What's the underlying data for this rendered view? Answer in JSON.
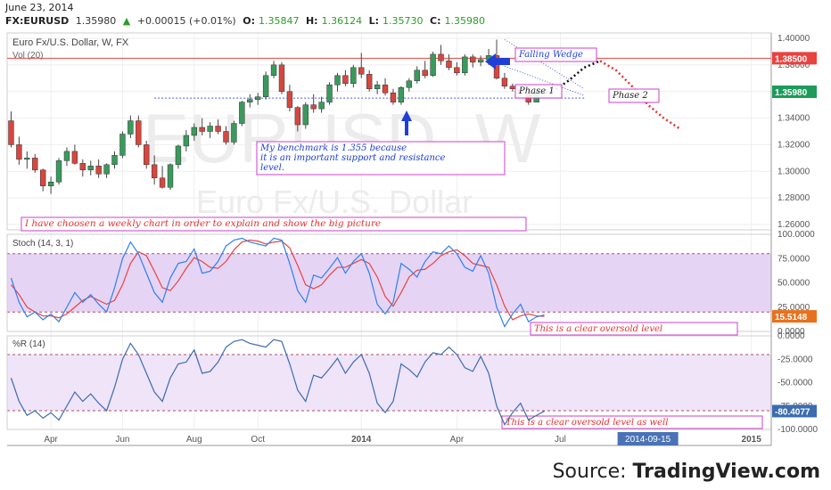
{
  "header": {
    "date": "June 23, 2014",
    "symbol": "FX:EURUSD",
    "last": "1.35980",
    "change": "+0.00015 (+0.01%)",
    "o_label": "O:",
    "o": "1.35847",
    "h_label": "H:",
    "h": "1.36124",
    "l_label": "L:",
    "l": "1.35730",
    "c_label": "C:",
    "c": "1.35980"
  },
  "chart_data": [
    {
      "panel": "price",
      "type": "candlestick",
      "title": "Euro Fx/U.S. Dollar, W, FX",
      "subtitle": "Vol (20)",
      "watermark_line1": "EURUSD, W",
      "watermark_line2": "Euro Fx/U.S. Dollar",
      "y_ticks": [
        "1.40000",
        "1.38000",
        "1.36000",
        "1.34000",
        "1.32000",
        "1.30000",
        "1.28000",
        "1.26000"
      ],
      "ylim": [
        1.256,
        1.404
      ],
      "resistance": {
        "value": 1.385,
        "label": "1.38500",
        "color": "#e8433f"
      },
      "benchmark": {
        "value": 1.355
      },
      "last_price": {
        "value": 1.3598,
        "label": "1.35980",
        "color": "#1d9b5b"
      },
      "ohlc": [
        [
          1.338,
          1.345,
          1.318,
          1.32
        ],
        [
          1.32,
          1.326,
          1.305,
          1.309
        ],
        [
          1.309,
          1.315,
          1.302,
          1.31
        ],
        [
          1.31,
          1.313,
          1.299,
          1.301
        ],
        [
          1.301,
          1.302,
          1.285,
          1.289
        ],
        [
          1.289,
          1.296,
          1.283,
          1.292
        ],
        [
          1.292,
          1.31,
          1.29,
          1.308
        ],
        [
          1.308,
          1.318,
          1.304,
          1.315
        ],
        [
          1.315,
          1.32,
          1.305,
          1.306
        ],
        [
          1.306,
          1.309,
          1.296,
          1.301
        ],
        [
          1.301,
          1.308,
          1.297,
          1.304
        ],
        [
          1.304,
          1.309,
          1.295,
          1.298
        ],
        [
          1.298,
          1.306,
          1.295,
          1.305
        ],
        [
          1.305,
          1.315,
          1.302,
          1.312
        ],
        [
          1.312,
          1.33,
          1.31,
          1.328
        ],
        [
          1.328,
          1.342,
          1.325,
          1.338
        ],
        [
          1.338,
          1.342,
          1.318,
          1.32
        ],
        [
          1.32,
          1.323,
          1.302,
          1.305
        ],
        [
          1.305,
          1.312,
          1.29,
          1.295
        ],
        [
          1.295,
          1.304,
          1.287,
          1.288
        ],
        [
          1.288,
          1.306,
          1.286,
          1.305
        ],
        [
          1.305,
          1.32,
          1.302,
          1.319
        ],
        [
          1.319,
          1.331,
          1.315,
          1.327
        ],
        [
          1.327,
          1.336,
          1.323,
          1.333
        ],
        [
          1.333,
          1.34,
          1.327,
          1.33
        ],
        [
          1.33,
          1.337,
          1.325,
          1.334
        ],
        [
          1.334,
          1.339,
          1.328,
          1.33
        ],
        [
          1.33,
          1.334,
          1.32,
          1.322
        ],
        [
          1.322,
          1.338,
          1.32,
          1.336
        ],
        [
          1.336,
          1.353,
          1.334,
          1.352
        ],
        [
          1.352,
          1.358,
          1.348,
          1.354
        ],
        [
          1.354,
          1.359,
          1.35,
          1.356
        ],
        [
          1.356,
          1.375,
          1.354,
          1.372
        ],
        [
          1.372,
          1.383,
          1.37,
          1.38
        ],
        [
          1.38,
          1.382,
          1.358,
          1.36
        ],
        [
          1.36,
          1.365,
          1.345,
          1.348
        ],
        [
          1.348,
          1.349,
          1.33,
          1.335
        ],
        [
          1.335,
          1.352,
          1.332,
          1.35
        ],
        [
          1.35,
          1.358,
          1.344,
          1.347
        ],
        [
          1.347,
          1.356,
          1.344,
          1.352
        ],
        [
          1.352,
          1.367,
          1.35,
          1.365
        ],
        [
          1.365,
          1.374,
          1.36,
          1.372
        ],
        [
          1.372,
          1.376,
          1.364,
          1.366
        ],
        [
          1.366,
          1.38,
          1.363,
          1.378
        ],
        [
          1.378,
          1.389,
          1.37,
          1.373
        ],
        [
          1.373,
          1.376,
          1.36,
          1.362
        ],
        [
          1.362,
          1.368,
          1.358,
          1.365
        ],
        [
          1.365,
          1.37,
          1.357,
          1.359
        ],
        [
          1.359,
          1.362,
          1.35,
          1.352
        ],
        [
          1.352,
          1.364,
          1.35,
          1.363
        ],
        [
          1.363,
          1.37,
          1.36,
          1.368
        ],
        [
          1.368,
          1.379,
          1.366,
          1.376
        ],
        [
          1.376,
          1.383,
          1.37,
          1.372
        ],
        [
          1.372,
          1.39,
          1.371,
          1.388
        ],
        [
          1.388,
          1.395,
          1.38,
          1.383
        ],
        [
          1.383,
          1.388,
          1.376,
          1.378
        ],
        [
          1.378,
          1.382,
          1.372,
          1.374
        ],
        [
          1.374,
          1.388,
          1.372,
          1.386
        ],
        [
          1.386,
          1.388,
          1.378,
          1.382
        ],
        [
          1.382,
          1.387,
          1.379,
          1.384
        ],
        [
          1.384,
          1.392,
          1.38,
          1.387
        ],
        [
          1.387,
          1.399,
          1.369,
          1.37
        ],
        [
          1.37,
          1.374,
          1.362,
          1.364
        ],
        [
          1.364,
          1.366,
          1.36,
          1.362
        ],
        [
          1.362,
          1.364,
          1.356,
          1.358
        ],
        [
          1.358,
          1.365,
          1.35,
          1.352
        ],
        [
          1.352,
          1.362,
          1.352,
          1.36
        ],
        [
          1.3585,
          1.3612,
          1.3573,
          1.3598
        ]
      ],
      "projection_black": [
        [
          1.3598,
          68
        ],
        [
          1.368,
          70
        ],
        [
          1.378,
          72
        ],
        [
          1.383,
          74
        ]
      ],
      "projection_red": [
        [
          1.383,
          74
        ],
        [
          1.376,
          76
        ],
        [
          1.364,
          78
        ],
        [
          1.35,
          80
        ],
        [
          1.34,
          82
        ],
        [
          1.332,
          84
        ]
      ],
      "annotations": {
        "falling_wedge": "Falling Wedge",
        "phase1": "Phase 1",
        "phase2": "Phase 2",
        "benchmark_note": [
          "My benchmark is 1.355 because",
          "it is an important support and resistance",
          "level."
        ],
        "weekly_note": "I have choosen a weekly chart in order to explain and show the big picture"
      }
    },
    {
      "panel": "stochastic",
      "type": "line",
      "title": "Stoch (14, 3, 1)",
      "ylim": [
        0,
        100
      ],
      "y_ticks": [
        "100.0000",
        "75.0000",
        "50.0000",
        "25.0000",
        "0.0000"
      ],
      "band": [
        20,
        80
      ],
      "last_label": "15.5148",
      "last_value": 15.5148,
      "last_color": "#e8711d",
      "series": [
        {
          "color": "#2f80ed",
          "values": [
            55,
            30,
            15,
            20,
            12,
            18,
            10,
            25,
            40,
            30,
            38,
            28,
            20,
            45,
            75,
            92,
            80,
            60,
            40,
            30,
            55,
            70,
            72,
            85,
            60,
            62,
            72,
            88,
            94,
            96,
            92,
            90,
            88,
            96,
            94,
            70,
            42,
            30,
            58,
            55,
            65,
            76,
            60,
            72,
            80,
            60,
            28,
            18,
            30,
            70,
            64,
            56,
            72,
            82,
            80,
            88,
            80,
            66,
            62,
            78,
            60,
            25,
            5,
            18,
            28,
            10,
            15,
            17
          ]
        },
        {
          "color": "#e8433f",
          "values": [
            48,
            38,
            25,
            20,
            16,
            16,
            14,
            18,
            25,
            32,
            36,
            32,
            28,
            32,
            48,
            70,
            82,
            78,
            62,
            45,
            42,
            52,
            65,
            76,
            72,
            66,
            65,
            72,
            84,
            92,
            94,
            93,
            90,
            92,
            93,
            86,
            68,
            48,
            44,
            48,
            58,
            66,
            66,
            70,
            74,
            70,
            56,
            36,
            26,
            40,
            56,
            63,
            64,
            70,
            78,
            82,
            84,
            78,
            70,
            68,
            66,
            48,
            26,
            12,
            16,
            18,
            16,
            15.5
          ]
        }
      ],
      "note": "This is a clear oversold level"
    },
    {
      "panel": "williams_r",
      "type": "line",
      "title": "%R (14)",
      "ylim": [
        -100,
        0
      ],
      "y_ticks": [
        "0.0000",
        "-25.0000",
        "-50.0000",
        "-75.0000",
        "-100.0000"
      ],
      "band": [
        -80,
        -20
      ],
      "last_label": "-80.4077",
      "last_value": -80.4077,
      "last_color": "#3c6cb0",
      "series": [
        {
          "color": "#3c6cb0",
          "values": [
            -45,
            -70,
            -85,
            -80,
            -88,
            -82,
            -90,
            -75,
            -60,
            -70,
            -62,
            -72,
            -80,
            -55,
            -25,
            -8,
            -20,
            -40,
            -60,
            -70,
            -45,
            -30,
            -28,
            -15,
            -40,
            -38,
            -28,
            -12,
            -6,
            -4,
            -8,
            -10,
            -12,
            -4,
            -6,
            -30,
            -58,
            -70,
            -42,
            -45,
            -35,
            -24,
            -40,
            -28,
            -20,
            -40,
            -72,
            -82,
            -70,
            -30,
            -36,
            -44,
            -28,
            -18,
            -20,
            -12,
            -20,
            -34,
            -38,
            -22,
            -40,
            -75,
            -95,
            -82,
            -72,
            -90,
            -85,
            -80.4
          ]
        }
      ],
      "note": "This is a clear oversold level as well"
    }
  ],
  "x_axis": {
    "labels": [
      {
        "text": "Apr",
        "idx": 5
      },
      {
        "text": "Jun",
        "idx": 14
      },
      {
        "text": "Aug",
        "idx": 23
      },
      {
        "text": "Oct",
        "idx": 31
      },
      {
        "text": "2014",
        "idx": 44
      },
      {
        "text": "Apr",
        "idx": 56
      },
      {
        "text": "Jul",
        "idx": 69
      },
      {
        "text": "2015",
        "idx": 93
      }
    ],
    "highlight": {
      "text": "2014-09-15",
      "idx": 80
    },
    "n_weeks_total": 96
  },
  "credit": {
    "prefix": "Source: ",
    "brand": "TradingView.com"
  }
}
